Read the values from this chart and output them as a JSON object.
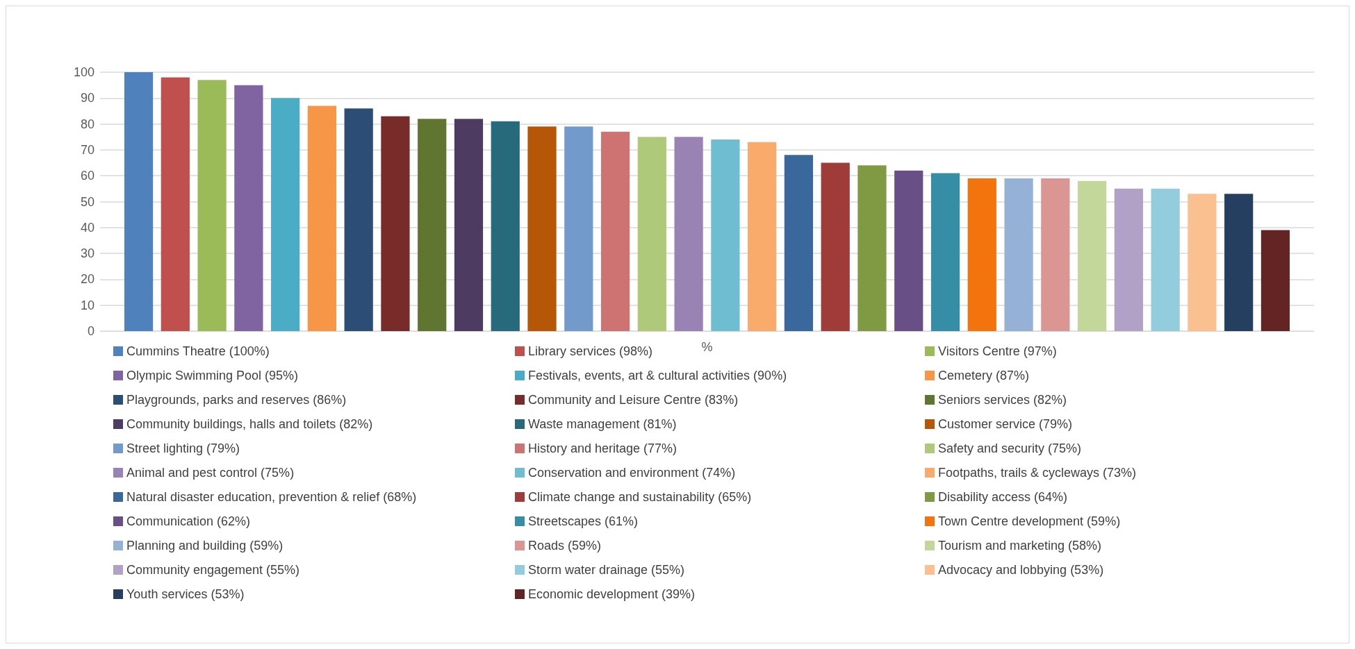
{
  "chart_data": {
    "type": "bar",
    "xlabel": "%",
    "categories": [
      null
    ],
    "ylim": [
      0,
      100
    ],
    "yticks": [
      0,
      10,
      20,
      30,
      40,
      50,
      60,
      70,
      80,
      90,
      100
    ],
    "grid": "y",
    "legend": "bottom",
    "series": [
      {
        "name": "Cummins Theatre (100%)",
        "color": "#4f81bd",
        "values": [
          100
        ]
      },
      {
        "name": "Library services (98%)",
        "color": "#c0504d",
        "values": [
          98
        ]
      },
      {
        "name": "Visitors Centre (97%)",
        "color": "#9bbb59",
        "values": [
          97
        ]
      },
      {
        "name": "Olympic Swimming Pool (95%)",
        "color": "#8064a2",
        "values": [
          95
        ]
      },
      {
        "name": "Festivals, events, art & cultural activities (90%)",
        "color": "#4bacc6",
        "values": [
          90
        ]
      },
      {
        "name": "Cemetery (87%)",
        "color": "#f79646",
        "values": [
          87
        ]
      },
      {
        "name": "Playgrounds, parks and reserves (86%)",
        "color": "#2c4d75",
        "values": [
          86
        ]
      },
      {
        "name": "Community and Leisure Centre (83%)",
        "color": "#772c2a",
        "values": [
          83
        ]
      },
      {
        "name": "Seniors services (82%)",
        "color": "#5f7530",
        "values": [
          82
        ]
      },
      {
        "name": "Community buildings, halls and toilets (82%)",
        "color": "#4d3b62",
        "values": [
          82
        ]
      },
      {
        "name": "Waste management (81%)",
        "color": "#276a7c",
        "values": [
          81
        ]
      },
      {
        "name": "Customer service (79%)",
        "color": "#b65708",
        "values": [
          79
        ]
      },
      {
        "name": "Street lighting (79%)",
        "color": "#729aca",
        "values": [
          79
        ]
      },
      {
        "name": "History and heritage (77%)",
        "color": "#cd7371",
        "values": [
          77
        ]
      },
      {
        "name": "Safety and security (75%)",
        "color": "#afc97a",
        "values": [
          75
        ]
      },
      {
        "name": "Animal and pest control (75%)",
        "color": "#9983b5",
        "values": [
          75
        ]
      },
      {
        "name": "Conservation and environment (74%)",
        "color": "#6fbdd1",
        "values": [
          74
        ]
      },
      {
        "name": "Footpaths, trails & cycleways (73%)",
        "color": "#f9ab6b",
        "values": [
          73
        ]
      },
      {
        "name": "Natural disaster education, prevention & relief (68%)",
        "color": "#3a679c",
        "values": [
          68
        ]
      },
      {
        "name": "Climate change and sustainability (65%)",
        "color": "#9f3b38",
        "values": [
          65
        ]
      },
      {
        "name": "Disability access (64%)",
        "color": "#7f9a42",
        "values": [
          64
        ]
      },
      {
        "name": "Communication (62%)",
        "color": "#684f86",
        "values": [
          62
        ]
      },
      {
        "name": "Streetscapes (61%)",
        "color": "#358ea6",
        "values": [
          61
        ]
      },
      {
        "name": "Town Centre development (59%)",
        "color": "#f3740d",
        "values": [
          59
        ]
      },
      {
        "name": "Planning and building (59%)",
        "color": "#95b1d6",
        "values": [
          59
        ]
      },
      {
        "name": "Roads (59%)",
        "color": "#db9694",
        "values": [
          59
        ]
      },
      {
        "name": "Tourism and marketing (58%)",
        "color": "#c4d79b",
        "values": [
          58
        ]
      },
      {
        "name": "Community engagement (55%)",
        "color": "#b2a1c7",
        "values": [
          55
        ]
      },
      {
        "name": "Storm water drainage (55%)",
        "color": "#93cddd",
        "values": [
          55
        ]
      },
      {
        "name": "Advocacy and lobbying (53%)",
        "color": "#fac090",
        "values": [
          53
        ]
      },
      {
        "name": "Youth services (53%)",
        "color": "#253f61",
        "values": [
          53
        ]
      },
      {
        "name": "Economic development (39%)",
        "color": "#632523",
        "values": [
          39
        ]
      }
    ]
  }
}
